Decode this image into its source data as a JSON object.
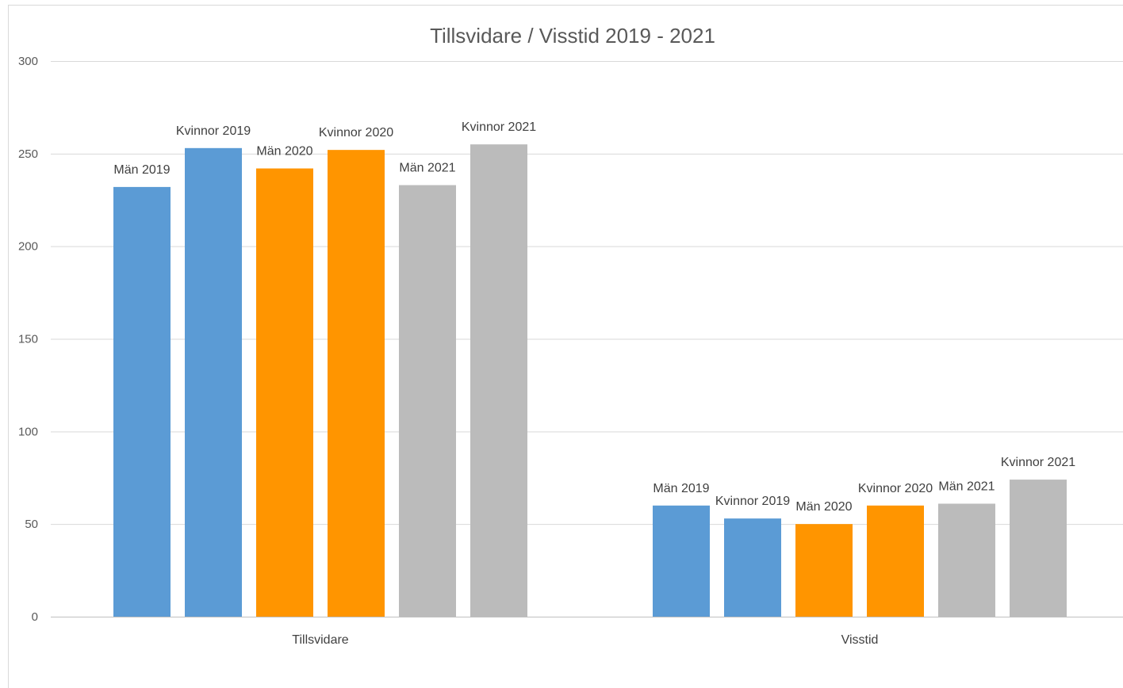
{
  "chart_data": {
    "type": "bar",
    "title": "Tillsvidare / Visstid 2019 - 2021",
    "categories": [
      "Tillsvidare",
      "Visstid"
    ],
    "series": [
      {
        "name": "Män 2019",
        "values": [
          232,
          60
        ],
        "color": "#5b9bd5"
      },
      {
        "name": "Kvinnor 2019",
        "values": [
          253,
          53
        ],
        "color": "#5b9bd5"
      },
      {
        "name": "Män 2020",
        "values": [
          242,
          50
        ],
        "color": "#ff9500"
      },
      {
        "name": "Kvinnor 2020",
        "values": [
          252,
          60
        ],
        "color": "#ff9500"
      },
      {
        "name": "Män 2021",
        "values": [
          233,
          61
        ],
        "color": "#bbbbbb"
      },
      {
        "name": "Kvinnor 2021",
        "values": [
          255,
          74
        ],
        "color": "#bbbbbb"
      }
    ],
    "yticks": [
      "0",
      "50",
      "100",
      "150",
      "200",
      "250",
      "300"
    ],
    "ylim": [
      0,
      300
    ],
    "grid": true,
    "legend": "none"
  }
}
